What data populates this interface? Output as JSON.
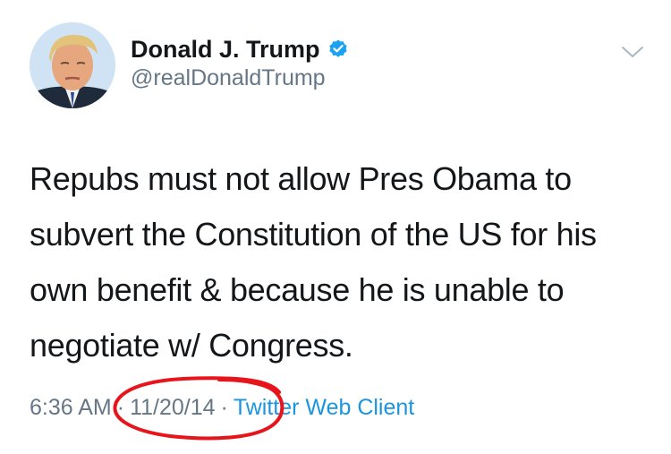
{
  "tweet": {
    "display_name": "Donald J. Trump",
    "handle": "@realDonaldTrump",
    "text": "Repubs must not allow Pres Obama to subvert the Constitution of the US for his own benefit & because he is unable to negotiate w/ Congress.",
    "time": "6:36 AM",
    "date": "11/20/14",
    "separator": "·",
    "client": "Twitter Web Client"
  },
  "icons": {
    "verified": "verified-badge-icon",
    "menu": "chevron-down-icon"
  },
  "colors": {
    "verified_blue": "#1da1f2",
    "link_blue": "#1b95e0",
    "muted_gray": "#657786",
    "annotation_red": "#e8141c"
  }
}
